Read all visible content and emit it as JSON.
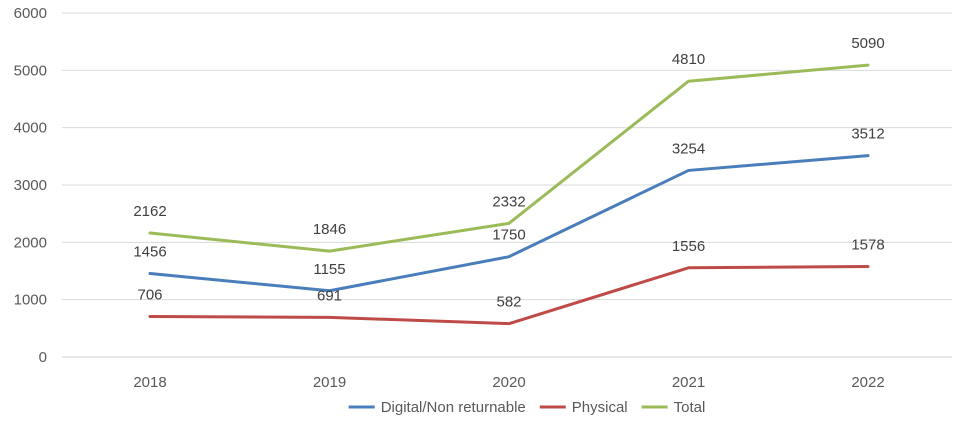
{
  "chart_data": {
    "type": "line",
    "title": "",
    "xlabel": "",
    "ylabel": "",
    "categories": [
      "2018",
      "2019",
      "2020",
      "2021",
      "2022"
    ],
    "y_ticks": [
      "0",
      "1000",
      "2000",
      "3000",
      "4000",
      "5000",
      "6000"
    ],
    "ylim": [
      0,
      6000
    ],
    "grid": true,
    "legend_position": "bottom",
    "series": [
      {
        "name": "Digital/Non returnable",
        "color": "#4a7ebb",
        "values": [
          1456,
          1155,
          1750,
          3254,
          3512
        ],
        "labels": [
          "1456",
          "1155",
          "1750",
          "3254",
          "3512"
        ]
      },
      {
        "name": "Physical",
        "color": "#be4b48",
        "values": [
          706,
          691,
          582,
          1556,
          1578
        ],
        "labels": [
          "706",
          "691",
          "582",
          "1556",
          "1578"
        ]
      },
      {
        "name": "Total",
        "color": "#9bbb59",
        "values": [
          2162,
          1846,
          2332,
          4810,
          5090
        ],
        "labels": [
          "2162",
          "1846",
          "2332",
          "4810",
          "5090"
        ]
      }
    ]
  }
}
